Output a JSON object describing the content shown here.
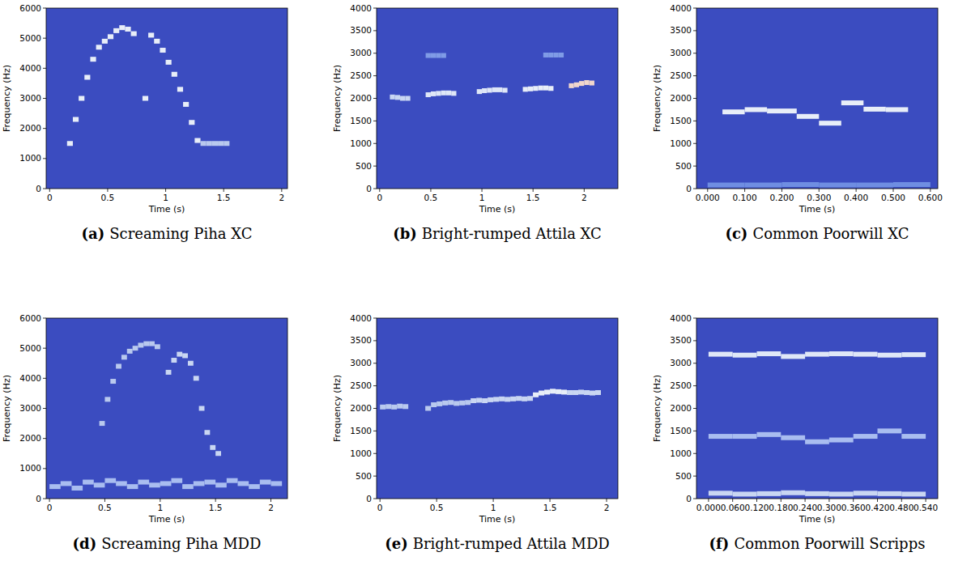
{
  "chart_data": [
    {
      "type": "spectrogram",
      "label": "(a)",
      "title": "Screaming Piha XC",
      "x_label": "Time (s)",
      "y_label": "Frequency (Hz)",
      "xlim": [
        -0.03,
        2.05
      ],
      "xticks": [
        0,
        0.5,
        1,
        1.5,
        2
      ],
      "ylim": [
        0,
        6000
      ],
      "yticks": [
        0,
        1000,
        2000,
        3000,
        4000,
        5000,
        6000
      ],
      "series": [
        {
          "color": "#e8eef8",
          "x": [
            0.15,
            0.2,
            0.25,
            0.3,
            0.35,
            0.4,
            0.45,
            0.5,
            0.55,
            0.6,
            0.65,
            0.7
          ],
          "values": [
            1500,
            2300,
            3000,
            3700,
            4300,
            4700,
            4900,
            5050,
            5250,
            5350,
            5300,
            5150
          ]
        },
        {
          "color": "#e8eef8",
          "x": [
            0.8,
            0.85,
            0.9,
            0.95,
            1.0,
            1.05,
            1.1,
            1.15,
            1.2,
            1.25
          ],
          "values": [
            3000,
            5100,
            4900,
            4600,
            4200,
            3800,
            3300,
            2800,
            2200,
            1600
          ]
        },
        {
          "color": "#b9c9ee",
          "x": [
            1.3,
            1.35,
            1.4,
            1.45,
            1.5
          ],
          "values": [
            1500,
            1500,
            1500,
            1500,
            1500
          ]
        }
      ]
    },
    {
      "type": "spectrogram",
      "label": "(b)",
      "title": "Bright-rumped Attila XC",
      "x_label": "Time (s)",
      "y_label": "Frequency (Hz)",
      "xlim": [
        -0.03,
        2.33
      ],
      "xticks": [
        0,
        0.5,
        1,
        1.5,
        2
      ],
      "ylim": [
        0,
        4000
      ],
      "yticks": [
        0,
        500,
        1000,
        1500,
        2000,
        2500,
        3000,
        3500,
        4000
      ],
      "series": [
        {
          "color": "#c9d6f2",
          "x": [
            0.1,
            0.15,
            0.2,
            0.25
          ],
          "values": [
            2030,
            2020,
            2000,
            2000
          ]
        },
        {
          "color": "#dfe7f7",
          "x": [
            0.45,
            0.5,
            0.55,
            0.6,
            0.65,
            0.7
          ],
          "values": [
            2080,
            2100,
            2110,
            2120,
            2120,
            2110
          ]
        },
        {
          "color": "#dfe7f7",
          "x": [
            0.95,
            1.0,
            1.05,
            1.1,
            1.15,
            1.2
          ],
          "values": [
            2150,
            2170,
            2180,
            2190,
            2190,
            2180
          ]
        },
        {
          "color": "#e8eef8",
          "x": [
            1.4,
            1.45,
            1.5,
            1.55,
            1.6,
            1.65
          ],
          "values": [
            2200,
            2210,
            2220,
            2230,
            2230,
            2220
          ]
        },
        {
          "color": "#f0d6cc",
          "x": [
            1.85,
            1.9,
            1.95,
            2.0,
            2.05
          ],
          "values": [
            2280,
            2300,
            2330,
            2350,
            2340
          ]
        },
        {
          "color": "#7f9be6",
          "x": [
            0.45,
            0.5,
            0.55,
            0.6
          ],
          "values": [
            2950,
            2950,
            2950,
            2950
          ]
        },
        {
          "color": "#7f9be6",
          "x": [
            1.6,
            1.65,
            1.7,
            1.75
          ],
          "values": [
            2960,
            2960,
            2960,
            2960
          ]
        }
      ]
    },
    {
      "type": "spectrogram",
      "label": "(c)",
      "title": "Common Poorwill XC",
      "x_label": "Time (s)",
      "y_label": "Frequency (Hz)",
      "xlim": [
        -0.03,
        0.62
      ],
      "xticks": [
        {
          "value": 0,
          "label": "0.000"
        },
        {
          "value": 0.1,
          "label": "0.100"
        },
        {
          "value": 0.2,
          "label": "0.200"
        },
        {
          "value": 0.3,
          "label": "0.300"
        },
        {
          "value": 0.4,
          "label": "0.400"
        },
        {
          "value": 0.5,
          "label": "0.500"
        },
        {
          "value": 0.6,
          "label": "0.600"
        }
      ],
      "ylim": [
        0,
        4000
      ],
      "yticks": [
        0,
        500,
        1000,
        1500,
        2000,
        2500,
        3000,
        3500,
        4000
      ],
      "series": [
        {
          "color": "#e8eef8",
          "x": [
            0.04,
            0.1,
            0.16,
            0.24,
            0.3,
            0.36,
            0.42,
            0.48
          ],
          "values": [
            1700,
            1750,
            1720,
            1600,
            1450,
            1900,
            1760,
            1750
          ]
        },
        {
          "color": "#6f8ee2",
          "x": [
            0,
            0.1,
            0.2,
            0.3,
            0.4,
            0.5
          ],
          "values": [
            80,
            80,
            90,
            80,
            80,
            90
          ]
        }
      ]
    },
    {
      "type": "spectrogram",
      "label": "(d)",
      "title": "Screaming Piha MDD",
      "x_label": "Time (s)",
      "y_label": "Frequency (Hz)",
      "xlim": [
        -0.03,
        2.15
      ],
      "xticks": [
        0,
        0.5,
        1,
        1.5,
        2
      ],
      "ylim": [
        0,
        6000
      ],
      "yticks": [
        0,
        1000,
        2000,
        3000,
        4000,
        5000,
        6000
      ],
      "series": [
        {
          "color": "#b9c9ee",
          "x": [
            0.45,
            0.5,
            0.55,
            0.6,
            0.65,
            0.7,
            0.75,
            0.8,
            0.85,
            0.9,
            0.95
          ],
          "values": [
            2500,
            3300,
            3900,
            4400,
            4700,
            4900,
            5000,
            5100,
            5150,
            5150,
            5050
          ]
        },
        {
          "color": "#c9d6f2",
          "x": [
            1.05,
            1.1,
            1.15,
            1.2,
            1.25,
            1.3,
            1.35,
            1.4,
            1.45,
            1.5
          ],
          "values": [
            4200,
            4600,
            4800,
            4750,
            4500,
            4000,
            3000,
            2200,
            1700,
            1500
          ]
        },
        {
          "color": "#a9bdf0",
          "x": [
            0,
            0.1,
            0.2,
            0.3,
            0.4,
            0.5,
            0.6,
            0.7,
            0.8,
            0.9,
            1.0,
            1.1,
            1.2,
            1.3,
            1.4,
            1.5,
            1.6,
            1.7,
            1.8,
            1.9,
            2.0
          ],
          "values": [
            400,
            500,
            350,
            550,
            450,
            600,
            500,
            400,
            550,
            450,
            500,
            600,
            400,
            500,
            550,
            450,
            600,
            500,
            400,
            550,
            500
          ]
        }
      ]
    },
    {
      "type": "spectrogram",
      "label": "(e)",
      "title": "Bright-rumped Attila MDD",
      "x_label": "Time (s)",
      "y_label": "Frequency (Hz)",
      "xlim": [
        -0.03,
        2.1
      ],
      "xticks": [
        0,
        0.5,
        1,
        1.5,
        2
      ],
      "ylim": [
        0,
        4000
      ],
      "yticks": [
        0,
        500,
        1000,
        1500,
        2000,
        2500,
        3000,
        3500,
        4000
      ],
      "series": [
        {
          "color": "#b9c9ee",
          "x": [
            0,
            0.05,
            0.1,
            0.15,
            0.2
          ],
          "values": [
            2030,
            2040,
            2030,
            2050,
            2040
          ]
        },
        {
          "color": "#b9c9ee",
          "x": [
            0.4,
            0.45,
            0.5,
            0.55,
            0.6,
            0.65,
            0.7,
            0.75
          ],
          "values": [
            2000,
            2080,
            2100,
            2120,
            2130,
            2110,
            2120,
            2130
          ]
        },
        {
          "color": "#c9d6f2",
          "x": [
            0.8,
            0.85,
            0.9,
            0.95,
            1.0,
            1.05,
            1.1,
            1.15,
            1.2,
            1.25,
            1.3
          ],
          "values": [
            2170,
            2180,
            2170,
            2190,
            2200,
            2210,
            2200,
            2210,
            2220,
            2210,
            2220
          ]
        },
        {
          "color": "#e8eef8",
          "x": [
            1.35,
            1.4,
            1.45,
            1.5,
            1.55,
            1.6
          ],
          "values": [
            2300,
            2340,
            2360,
            2380,
            2370,
            2360
          ]
        },
        {
          "color": "#c9d6f2",
          "x": [
            1.65,
            1.7,
            1.75,
            1.8,
            1.85,
            1.9
          ],
          "values": [
            2350,
            2350,
            2360,
            2350,
            2340,
            2350
          ]
        }
      ]
    },
    {
      "type": "spectrogram",
      "label": "(f)",
      "title": "Common Poorwill Scripps",
      "x_label": "Time (s)",
      "y_label": "Frequency (Hz)",
      "xlim": [
        -0.03,
        0.57
      ],
      "xticks": [
        {
          "value": 0,
          "label": "0.000"
        },
        {
          "value": 0.06,
          "label": "0.060"
        },
        {
          "value": 0.12,
          "label": "0.120"
        },
        {
          "value": 0.18,
          "label": "0.180"
        },
        {
          "value": 0.24,
          "label": "0.240"
        },
        {
          "value": 0.3,
          "label": "0.300"
        },
        {
          "value": 0.36,
          "label": "0.360"
        },
        {
          "value": 0.42,
          "label": "0.420"
        },
        {
          "value": 0.48,
          "label": "0.480"
        },
        {
          "value": 0.54,
          "label": "0.540"
        }
      ],
      "ylim": [
        0,
        4000
      ],
      "yticks": [
        0,
        500,
        1000,
        1500,
        2000,
        2500,
        3000,
        3500,
        4000
      ],
      "series": [
        {
          "color": "#dfe7f7",
          "x": [
            0,
            0.06,
            0.12,
            0.18,
            0.24,
            0.3,
            0.36,
            0.42,
            0.48
          ],
          "values": [
            3200,
            3180,
            3210,
            3150,
            3200,
            3210,
            3200,
            3180,
            3190
          ]
        },
        {
          "color": "#a9bdf0",
          "x": [
            0,
            0.06,
            0.12,
            0.18,
            0.24,
            0.3,
            0.36,
            0.42,
            0.48
          ],
          "values": [
            1380,
            1380,
            1420,
            1350,
            1260,
            1300,
            1380,
            1500,
            1380
          ]
        },
        {
          "color": "#c9d6f2",
          "x": [
            0,
            0.06,
            0.12,
            0.18,
            0.24,
            0.3,
            0.36,
            0.42,
            0.48
          ],
          "values": [
            120,
            100,
            110,
            130,
            110,
            100,
            120,
            110,
            100
          ]
        }
      ]
    }
  ]
}
